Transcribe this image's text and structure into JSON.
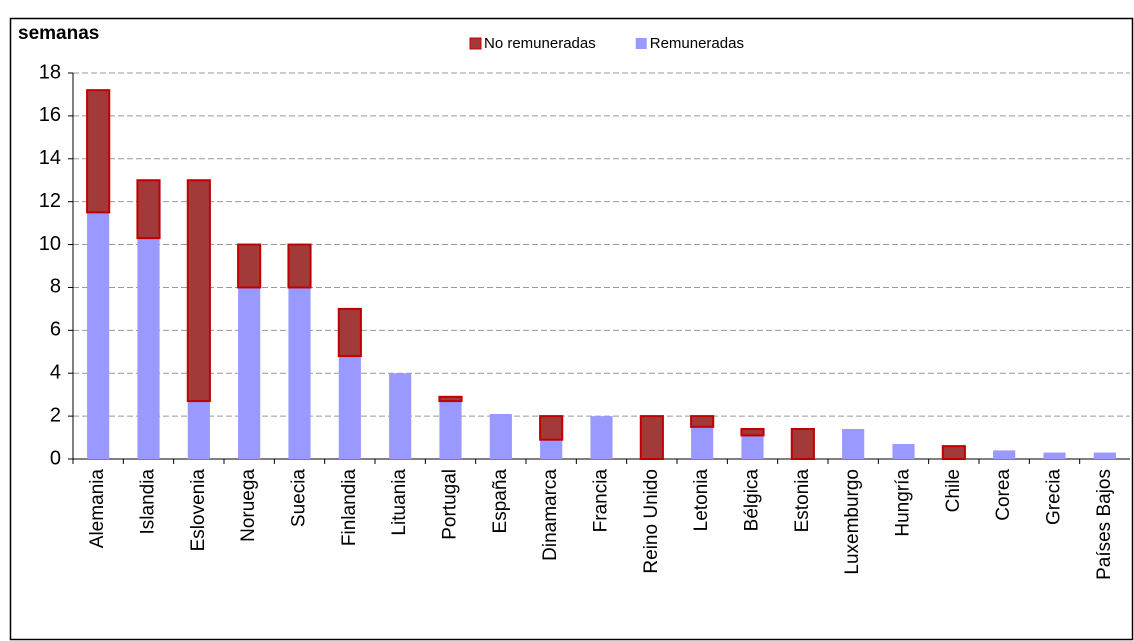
{
  "chart_data": {
    "type": "stacked_bar",
    "y_label": "semanas",
    "categories": [
      "Alemania",
      "Islandia",
      "Eslovenia",
      "Noruega",
      "Suecia",
      "Finlandia",
      "Lituania",
      "Portugal",
      "España",
      "Dinamarca",
      "Francia",
      "Reino Unido",
      "Letonia",
      "Bélgica",
      "Estonia",
      "Luxemburgo",
      "Hungría",
      "Chile",
      "Corea",
      "Grecia",
      "Países Bajos"
    ],
    "series": [
      {
        "name": "Remuneradas",
        "color": "#9999ff",
        "values": [
          11.5,
          10.3,
          2.7,
          8,
          8,
          4.8,
          4,
          2.7,
          2.1,
          0.9,
          2,
          0,
          1.5,
          1.1,
          0,
          1.4,
          0.7,
          0,
          0.4,
          0.3,
          0.3
        ]
      },
      {
        "name": "No remuneradas",
        "color": "#a33a3a",
        "values": [
          5.7,
          2.7,
          10.3,
          2,
          2,
          2.2,
          0,
          0.2,
          0,
          1.1,
          0,
          2,
          0.5,
          0.3,
          1.4,
          0,
          0,
          0.6,
          0,
          0,
          0
        ]
      }
    ],
    "legend_order": [
      1,
      0
    ],
    "ylim": [
      0,
      18
    ],
    "yticks": [
      0,
      2,
      4,
      6,
      8,
      10,
      12,
      14,
      16,
      18
    ],
    "grid": true
  }
}
